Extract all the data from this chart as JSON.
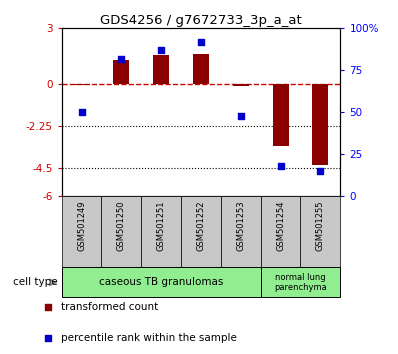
{
  "title": "GDS4256 / g7672733_3p_a_at",
  "samples": [
    "GSM501249",
    "GSM501250",
    "GSM501251",
    "GSM501252",
    "GSM501253",
    "GSM501254",
    "GSM501255"
  ],
  "red_values": [
    -0.05,
    1.3,
    1.55,
    1.65,
    -0.1,
    -3.3,
    -4.3
  ],
  "blue_values": [
    50,
    82,
    87,
    92,
    48,
    18,
    15
  ],
  "ylim_left": [
    -6,
    3
  ],
  "ylim_right": [
    0,
    100
  ],
  "yticks_left": [
    -6,
    -4.5,
    -2.25,
    0,
    3
  ],
  "yticks_left_labels": [
    "-6",
    "-4.5",
    "-2.25",
    "0",
    "3"
  ],
  "yticks_right": [
    0,
    25,
    50,
    75,
    100
  ],
  "yticks_right_labels": [
    "0",
    "25",
    "50",
    "75",
    "100%"
  ],
  "hlines_dotted": [
    -2.25,
    -4.5
  ],
  "hline_dashed": 0,
  "group1_samples": 5,
  "group2_samples": 2,
  "group1_label": "caseous TB granulomas",
  "group2_label": "normal lung\nparenchyma",
  "group_color": "#90EE90",
  "sample_box_color": "#C8C8C8",
  "cell_type_label": "cell type",
  "legend_red": "transformed count",
  "legend_blue": "percentile rank within the sample",
  "bar_color": "#8B0000",
  "dot_color": "#0000CD"
}
